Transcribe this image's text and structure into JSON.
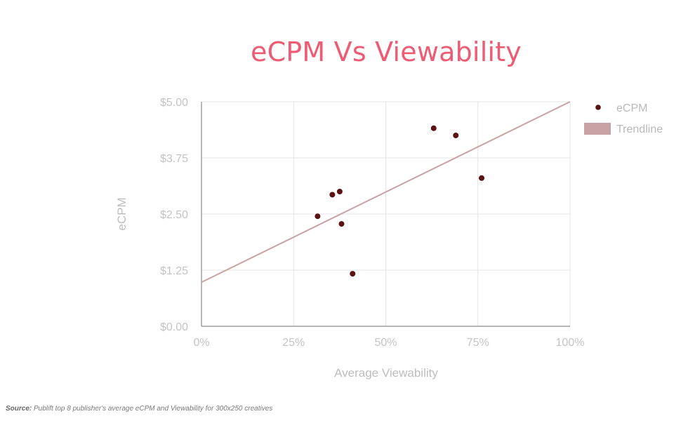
{
  "chart_data": {
    "type": "scatter",
    "title": "eCPM Vs Viewability",
    "xlabel": "Average Viewability",
    "ylabel": "eCPM",
    "xlim": [
      0,
      100
    ],
    "ylim": [
      0,
      5
    ],
    "x_ticks": [
      0,
      25,
      50,
      75,
      100
    ],
    "x_tick_labels": [
      "0%",
      "25%",
      "50%",
      "75%",
      "100%"
    ],
    "y_ticks": [
      0,
      1.25,
      2.5,
      3.75,
      5
    ],
    "y_tick_labels": [
      "$0.00",
      "$1.25",
      "$2.50",
      "$3.75",
      "$5.00"
    ],
    "grid": true,
    "legend_position": "top-right",
    "series": [
      {
        "name": "eCPM",
        "color": "#5a1212",
        "points": [
          {
            "x": 31.5,
            "y": 2.45
          },
          {
            "x": 35.5,
            "y": 2.93
          },
          {
            "x": 37.5,
            "y": 3.0
          },
          {
            "x": 38.0,
            "y": 2.28
          },
          {
            "x": 41.0,
            "y": 1.17
          },
          {
            "x": 63.0,
            "y": 4.41
          },
          {
            "x": 69.0,
            "y": 4.25
          },
          {
            "x": 76.0,
            "y": 3.3
          }
        ]
      }
    ],
    "trendline": {
      "name": "Trendline",
      "color": "#c9a2a5",
      "from": {
        "x": 0,
        "y": 0.98
      },
      "to": {
        "x": 100,
        "y": 5.0
      }
    }
  },
  "source_label": "Source:",
  "source_text": "Publift top 8 publisher's average eCPM and Viewability for 300x250 creatives"
}
